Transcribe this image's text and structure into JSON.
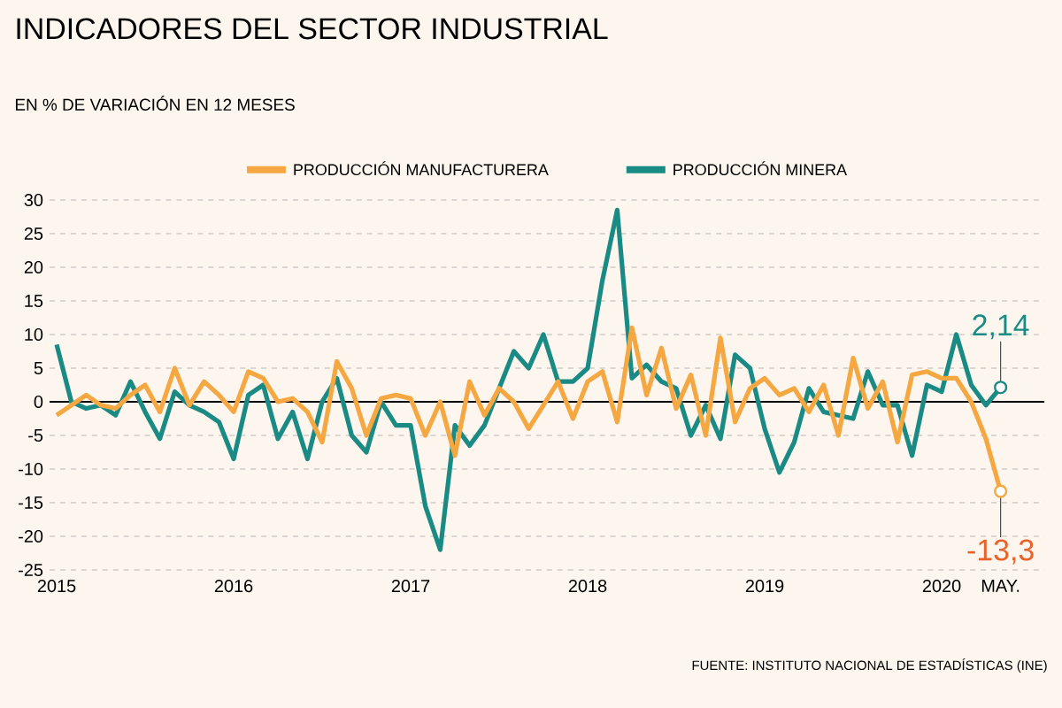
{
  "chart_data": {
    "type": "line",
    "title": "INDICADORES DEL SECTOR INDUSTRIAL",
    "subtitle": "EN % DE VARIACIÓN EN 12 MESES",
    "x": [
      2015.0,
      2015.083,
      2015.167,
      2015.25,
      2015.333,
      2015.417,
      2015.5,
      2015.583,
      2015.667,
      2015.75,
      2015.833,
      2015.917,
      2016.0,
      2016.083,
      2016.167,
      2016.25,
      2016.333,
      2016.417,
      2016.5,
      2016.583,
      2016.667,
      2016.75,
      2016.833,
      2016.917,
      2017.0,
      2017.083,
      2017.167,
      2017.25,
      2017.333,
      2017.417,
      2017.5,
      2017.583,
      2017.667,
      2017.75,
      2017.833,
      2017.917,
      2018.0,
      2018.083,
      2018.167,
      2018.25,
      2018.333,
      2018.417,
      2018.5,
      2018.583,
      2018.667,
      2018.75,
      2018.833,
      2018.917,
      2019.0,
      2019.083,
      2019.167,
      2019.25,
      2019.333,
      2019.417,
      2019.5,
      2019.583,
      2019.667,
      2019.75,
      2019.833,
      2019.917,
      2020.0,
      2020.083,
      2020.167,
      2020.25,
      2020.333
    ],
    "series": [
      {
        "name": "PRODUCCIÓN MANUFACTURERA",
        "color": "#f5a742",
        "values": [
          -2,
          -0.5,
          1,
          -0.5,
          -1,
          1,
          2.5,
          -1.5,
          5,
          -0.5,
          3,
          1,
          -1.5,
          4.5,
          3.5,
          0,
          0.5,
          -1.5,
          -6,
          6,
          2,
          -5,
          0.5,
          1,
          0.5,
          -5,
          0,
          -8,
          3,
          -2,
          2,
          0,
          -4,
          -0.5,
          3,
          -2.5,
          3,
          4.5,
          -3,
          11,
          1,
          8,
          -1,
          4,
          -5,
          9.5,
          -3,
          2,
          3.5,
          1,
          2,
          -1.5,
          2.5,
          -5,
          6.5,
          -1,
          3,
          -6,
          4,
          4.5,
          3.5,
          3.5,
          0,
          -5.5,
          -13.3
        ]
      },
      {
        "name": "PRODUCCIÓN MINERA",
        "color": "#1a8a84",
        "values": [
          8.5,
          0,
          -1,
          -0.5,
          -2,
          3,
          -1.5,
          -5.5,
          1.5,
          -0.5,
          -1.5,
          -3,
          -8.5,
          1,
          2.5,
          -5.5,
          -1.5,
          -8.5,
          0,
          3.5,
          -5,
          -7.5,
          0,
          -3.5,
          -3.5,
          -15.5,
          -22,
          -3.5,
          -6.5,
          -3.5,
          2,
          7.5,
          5,
          10,
          3,
          3,
          5,
          18,
          28.5,
          3.5,
          5.5,
          3,
          2,
          -5,
          -0.5,
          -5.5,
          7,
          5,
          -4,
          -10.5,
          -6,
          2,
          -1.5,
          -2,
          -2.5,
          4.5,
          -0.5,
          -0.5,
          -8,
          2.5,
          1.5,
          10,
          2.5,
          -0.5,
          2.14
        ]
      }
    ],
    "xlim": [
      2014.96,
      2020.58
    ],
    "xticks": [
      2015,
      2016,
      2017,
      2018,
      2019,
      2020,
      {
        "value": 2020.333,
        "label": "MAY."
      }
    ],
    "ylim": [
      -25,
      30
    ],
    "yticks": [
      -25,
      -20,
      -15,
      -10,
      -5,
      0,
      5,
      10,
      15,
      20,
      25,
      30
    ],
    "grid": "y",
    "legend": "top",
    "marker": "none",
    "line_style": "solid",
    "ref_lines": [
      {
        "axis": "y",
        "value": 0,
        "color": "#000000"
      }
    ],
    "annotations": [
      {
        "text": "2,14",
        "x": 2020.333,
        "y": 2.14
      },
      {
        "text": "-13,3",
        "x": 2020.333,
        "y": -13.3
      },
      "FUENTE: INSTITUTO NACIONAL DE ESTADÍSTICAS (INE)"
    ]
  }
}
